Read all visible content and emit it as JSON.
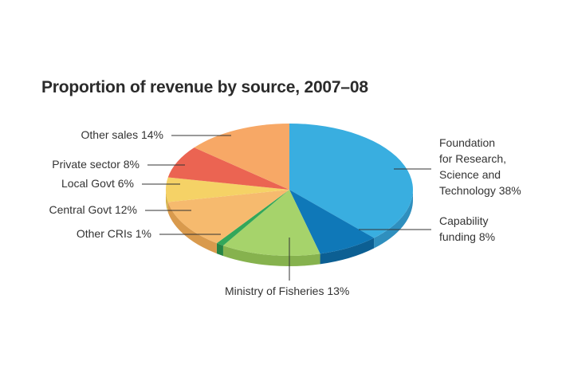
{
  "chart_data": {
    "type": "pie",
    "title": "Proportion of revenue by source, 2007–08",
    "slices": [
      {
        "label_lines": [
          "Foundation",
          "for Research,",
          "Science and",
          "Technology 38%"
        ],
        "value": 38,
        "color": "#39aee0",
        "side": "#2f8fbe"
      },
      {
        "label_lines": [
          "Capability",
          "funding 8%"
        ],
        "value": 8,
        "color": "#0f78b8",
        "side": "#0c5f93"
      },
      {
        "label_lines": [
          "Ministry of Fisheries 13%"
        ],
        "value": 13,
        "color": "#a6d36b",
        "side": "#86b24e"
      },
      {
        "label_lines": [
          "Other CRIs 1%"
        ],
        "value": 1,
        "color": "#33a75a",
        "side": "#268545"
      },
      {
        "label_lines": [
          "Central Govt 12%"
        ],
        "value": 12,
        "color": "#f6ba6e",
        "side": "#d99a4d"
      },
      {
        "label_lines": [
          "Local Govt 6%"
        ],
        "value": 6,
        "color": "#f5d266",
        "side": "#d6b24a"
      },
      {
        "label_lines": [
          "Private sector 8%"
        ],
        "value": 8,
        "color": "#eb6452",
        "side": "#c74a3b"
      },
      {
        "label_lines": [
          "Other sales 14%"
        ],
        "value": 14,
        "color": "#f7a866",
        "side": "#d8884a"
      }
    ]
  }
}
